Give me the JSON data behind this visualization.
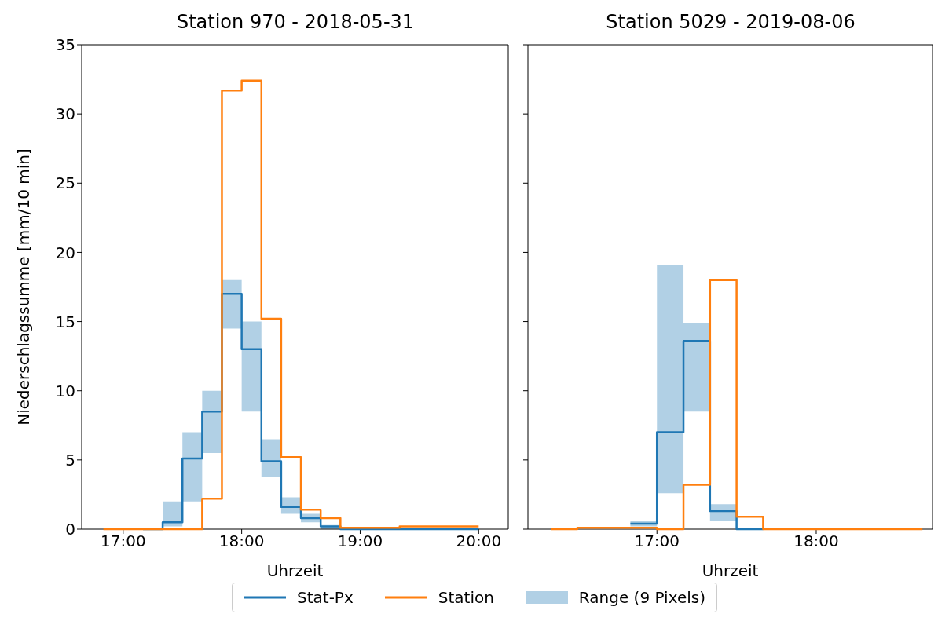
{
  "chart_data": [
    {
      "type": "step",
      "title": "Station 970 - 2018-05-31",
      "xlabel": "Uhrzeit",
      "ylabel": "Niederschlagssumme [mm/10 min]",
      "legend": "bottom",
      "annotations": [
        "Range (9 Pixels)"
      ],
      "x": [
        16.8333,
        17,
        17.1667,
        17.3333,
        17.5,
        17.6667,
        17.8333,
        18,
        18.1667,
        18.3333,
        18.5,
        18.6667,
        18.8333,
        19,
        19.1667,
        19.3333,
        19.5,
        19.6667,
        19.8333,
        20
      ],
      "series": [
        {
          "name": "Stat-Px",
          "color": "#1f77b4",
          "values": [
            null,
            null,
            0,
            0.5,
            5.1,
            8.5,
            17,
            13,
            4.9,
            1.6,
            0.8,
            0.2,
            0,
            0,
            0,
            0,
            0,
            0,
            0,
            0
          ],
          "lower": [
            0,
            0,
            0,
            0.2,
            2,
            5.5,
            14.5,
            8.5,
            3.8,
            1.1,
            0.5,
            0,
            0,
            0,
            0,
            0,
            0,
            0,
            0,
            0
          ],
          "upper": [
            0,
            0,
            0,
            2,
            7,
            10,
            18,
            15,
            6.5,
            2.3,
            1.1,
            0.3,
            0.1,
            0.1,
            0.1,
            0.1,
            0.1,
            0.1,
            0.1,
            0.1
          ]
        },
        {
          "name": "Station",
          "color": "#ff7f0e",
          "values": [
            0,
            0,
            0,
            0,
            0,
            2.2,
            31.7,
            32.4,
            15.2,
            5.2,
            1.4,
            0.8,
            0.1,
            0.1,
            0.1,
            0.2,
            0.2,
            0.2,
            0.2,
            0.2
          ]
        }
      ],
      "xlim": [
        16.65,
        20.25
      ],
      "xticks": [
        {
          "value": 17,
          "label": "17:00"
        },
        {
          "value": 18,
          "label": "18:00"
        },
        {
          "value": 19,
          "label": "19:00"
        },
        {
          "value": 20,
          "label": "20:00"
        }
      ],
      "ylim": [
        0,
        35
      ],
      "yticks": [
        0,
        5,
        10,
        15,
        20,
        25,
        30,
        35
      ]
    },
    {
      "type": "step",
      "title": "Station 5029 - 2019-08-06",
      "xlabel": "Uhrzeit",
      "tick_labels": "x",
      "x": [
        16.3333,
        16.5,
        16.6667,
        16.8333,
        17,
        17.1667,
        17.3333,
        17.5,
        17.6667,
        17.8333,
        18,
        18.1667,
        18.3333,
        18.5,
        18.6667
      ],
      "series": [
        {
          "color": "#1f77b4",
          "values": [
            null,
            null,
            null,
            0.4,
            7,
            13.6,
            1.3,
            0,
            0,
            null,
            null,
            null,
            null,
            null,
            null
          ],
          "lower": [
            0,
            0,
            0,
            0.2,
            2.6,
            8.5,
            0.6,
            0,
            0,
            0,
            0,
            0,
            0,
            0,
            0
          ],
          "upper": [
            0,
            0,
            0,
            0.6,
            19.1,
            14.9,
            1.8,
            0,
            0,
            0,
            0,
            0,
            0,
            0,
            0
          ]
        },
        {
          "color": "#ff7f0e",
          "values": [
            0,
            0.1,
            0.1,
            0.1,
            0,
            3.2,
            18,
            0.9,
            0,
            0,
            0,
            0,
            0,
            0,
            0
          ]
        }
      ],
      "xlim": [
        16.19,
        18.73
      ],
      "xticks": [
        {
          "value": 17,
          "label": "17:00"
        },
        {
          "value": 18,
          "label": "18:00"
        }
      ],
      "ylim": [
        0,
        35
      ],
      "yticks": [
        0,
        5,
        10,
        15,
        20,
        25,
        30,
        35
      ]
    }
  ]
}
